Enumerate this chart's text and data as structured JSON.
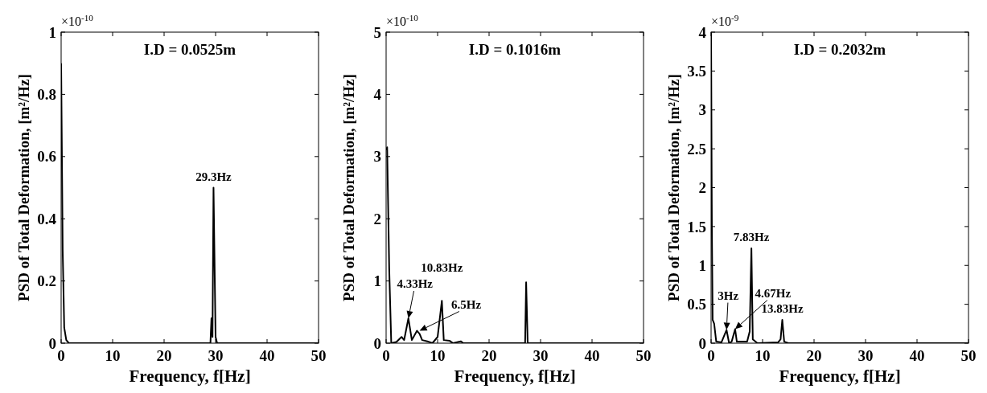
{
  "chart_data": [
    {
      "type": "line",
      "title": "I.D = 0.0525m",
      "xlabel": "Frequency, f[Hz]",
      "ylabel": "PSD of Total Deformation, [m²/Hz]",
      "x": [
        0,
        0.3,
        0.6,
        1,
        1.5,
        29,
        29.2,
        29.4,
        29.6,
        30,
        30.3,
        50
      ],
      "series": [
        {
          "color": "#000000",
          "values": [
            0.9,
            0.3,
            0.05,
            0.01,
            0,
            0,
            0.08,
            0.02,
            0.5,
            0.02,
            0,
            0
          ]
        }
      ],
      "xlim": [
        0,
        50
      ],
      "xticks": [
        0,
        10,
        20,
        30,
        40,
        50
      ],
      "ylim": [
        0,
        1
      ],
      "yticks": [
        0,
        0.2,
        0.4,
        0.6,
        0.8,
        1
      ],
      "grid": false,
      "marker": "none",
      "line_style": "solid",
      "annotations": [
        "×10$^{-10}$",
        {
          "text": "29.3Hz",
          "x": 29.6,
          "y": 0.5
        }
      ]
    },
    {
      "type": "line",
      "title": "I.D = 0.1016m",
      "xlabel": "Frequency, f[Hz]",
      "ylabel": "PSD of Total Deformation, [m²/Hz]",
      "x": [
        0,
        0.2,
        0.6,
        1,
        2,
        3,
        3.5,
        4.33,
        5,
        6,
        6.5,
        7,
        8,
        9,
        10,
        10.83,
        11.2,
        12.3,
        13,
        14.5,
        15,
        27,
        27.2,
        27.5,
        50
      ],
      "series": [
        {
          "color": "#000000",
          "values": [
            3.1,
            3.15,
            1.2,
            0,
            0.02,
            0.1,
            0.05,
            0.4,
            0.05,
            0.2,
            0.15,
            0.05,
            0.03,
            0,
            0.1,
            0.68,
            0.05,
            0.04,
            0,
            0.03,
            0,
            0,
            0.98,
            0,
            0
          ]
        }
      ],
      "xlim": [
        0,
        50
      ],
      "xticks": [
        0,
        10,
        20,
        30,
        40,
        50
      ],
      "ylim": [
        0,
        5
      ],
      "yticks": [
        0,
        1,
        2,
        3,
        4,
        5
      ],
      "grid": false,
      "marker": "none",
      "line_style": "solid",
      "annotations": [
        "×10$^{-10}$",
        {
          "text": "4.33Hz",
          "x": 4.33,
          "y": 0.4
        },
        {
          "text": "6.5Hz",
          "x": 6.5,
          "y": 0.2
        },
        {
          "text": "10.83Hz",
          "x": 10.83,
          "y": 0.68
        }
      ]
    },
    {
      "type": "line",
      "title": "I.D = 0.2032m",
      "xlabel": "Frequency, f[Hz]",
      "ylabel": "PSD of Total Deformation, [m²/Hz]",
      "x": [
        0,
        0.15,
        0.3,
        0.6,
        1,
        2,
        3,
        3.5,
        4,
        4.67,
        5,
        7,
        7.5,
        7.83,
        8.1,
        9,
        13,
        13.5,
        13.83,
        14.2,
        15,
        50
      ],
      "series": [
        {
          "color": "#000000",
          "values": [
            4,
            1.5,
            0.3,
            0.25,
            0.02,
            0.01,
            0.17,
            0,
            0.02,
            0.18,
            0.02,
            0.02,
            0.15,
            1.22,
            0.05,
            0,
            0.01,
            0.05,
            0.3,
            0.02,
            0,
            0
          ]
        }
      ],
      "xlim": [
        0,
        50
      ],
      "xticks": [
        0,
        10,
        20,
        30,
        40,
        50
      ],
      "ylim": [
        0,
        4
      ],
      "yticks": [
        0,
        0.5,
        1,
        1.5,
        2,
        2.5,
        3,
        3.5,
        4
      ],
      "grid": false,
      "marker": "none",
      "line_style": "solid",
      "annotations": [
        "×10$^{-9}$",
        {
          "text": "3Hz",
          "x": 3,
          "y": 0.17
        },
        {
          "text": "4.67Hz",
          "x": 4.67,
          "y": 0.18
        },
        {
          "text": "7.83Hz",
          "x": 7.83,
          "y": 1.22
        },
        {
          "text": "13.83Hz",
          "x": 13.83,
          "y": 0.3
        }
      ]
    }
  ]
}
